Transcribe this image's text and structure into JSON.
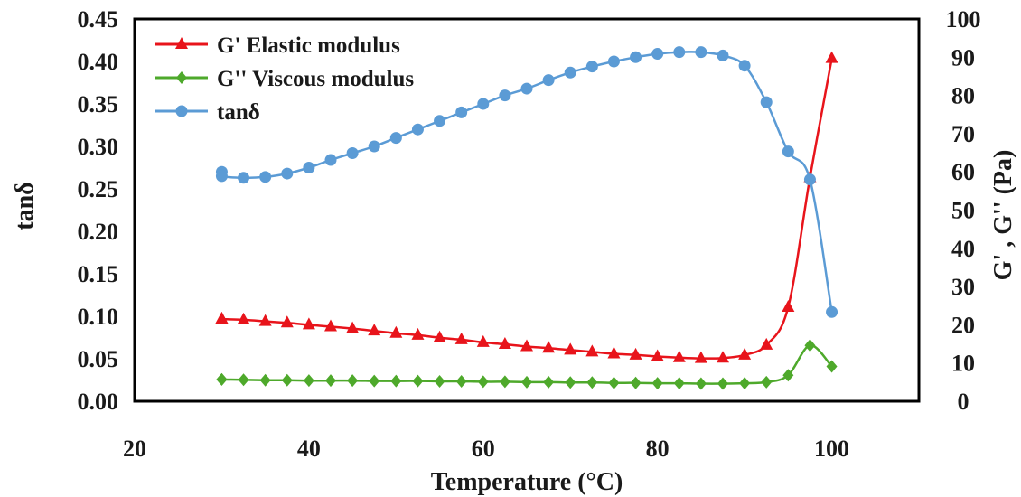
{
  "chart_data": {
    "type": "line",
    "xlabel": "Temperature (°C)",
    "ylabel_left": "tanδ",
    "ylabel_right": "G' , G'' (Pa)",
    "xlim": [
      20,
      110
    ],
    "ylim_left": [
      0,
      0.45
    ],
    "ylim_right": [
      0,
      100
    ],
    "xticks": [
      "20",
      "40",
      "60",
      "80",
      "100"
    ],
    "yticks_left": [
      "0.00",
      "0.05",
      "0.10",
      "0.15",
      "0.20",
      "0.25",
      "0.30",
      "0.35",
      "0.40",
      "0.45"
    ],
    "yticks_right": [
      "0",
      "10",
      "20",
      "30",
      "40",
      "50",
      "60",
      "70",
      "80",
      "90",
      "100"
    ],
    "grid": false,
    "legend_position": "top-left",
    "x": [
      30,
      30,
      32.5,
      35,
      37.5,
      40,
      42.5,
      45,
      47.5,
      50,
      52.5,
      55,
      57.5,
      60,
      62.5,
      65,
      67.5,
      70,
      72.5,
      75,
      77.5,
      80,
      82.5,
      85,
      87.5,
      90,
      92.5,
      95,
      97.5,
      100
    ],
    "series": [
      {
        "name": "G' Elastic modulus",
        "axis": "right",
        "color": "#e8141b",
        "marker": "triangle",
        "values": [
          21.5,
          21.5,
          21.3,
          20.9,
          20.5,
          20.0,
          19.5,
          19.0,
          18.4,
          17.8,
          17.3,
          16.6,
          16.1,
          15.4,
          14.9,
          14.3,
          13.9,
          13.4,
          12.9,
          12.4,
          12.1,
          11.7,
          11.4,
          11.2,
          11.3,
          12.1,
          14.7,
          24.6,
          58.5,
          89.7
        ]
      },
      {
        "name": "G'' Viscous modulus",
        "axis": "right",
        "color": "#4ea92b",
        "marker": "diamond",
        "values": [
          5.7,
          5.7,
          5.6,
          5.5,
          5.5,
          5.4,
          5.4,
          5.4,
          5.3,
          5.3,
          5.3,
          5.2,
          5.2,
          5.1,
          5.1,
          5.0,
          5.0,
          4.9,
          4.9,
          4.8,
          4.8,
          4.7,
          4.7,
          4.6,
          4.6,
          4.7,
          5.0,
          6.8,
          14.6,
          9.1
        ]
      },
      {
        "name": "tanδ",
        "axis": "left",
        "color": "#5b9bd5",
        "marker": "circle",
        "values": [
          0.27,
          0.265,
          0.263,
          0.264,
          0.268,
          0.275,
          0.284,
          0.292,
          0.3,
          0.31,
          0.32,
          0.33,
          0.34,
          0.35,
          0.36,
          0.368,
          0.378,
          0.387,
          0.394,
          0.4,
          0.405,
          0.409,
          0.411,
          0.411,
          0.407,
          0.395,
          0.352,
          0.294,
          0.261,
          0.105
        ]
      }
    ]
  }
}
